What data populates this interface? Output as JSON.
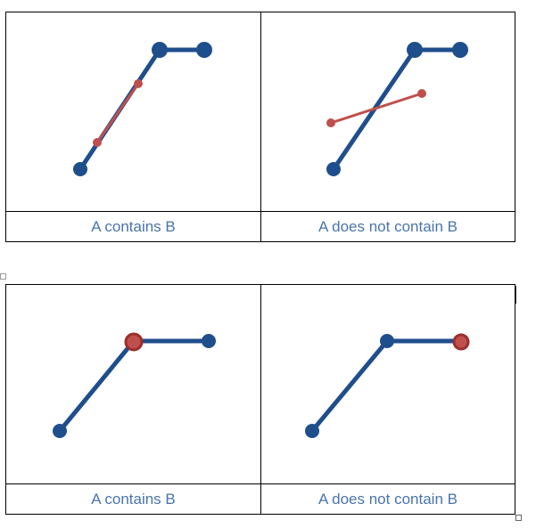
{
  "colors": {
    "a_line": "#1f4e8c",
    "b_line": "#c0504d",
    "caption": "#4a74aa"
  },
  "tables": [
    {
      "panels": [
        {
          "caption": "A contains B"
        },
        {
          "caption": "A does not contain B"
        }
      ]
    },
    {
      "panels": [
        {
          "caption": "A contains B"
        },
        {
          "caption": "A does not contain B"
        }
      ]
    }
  ]
}
